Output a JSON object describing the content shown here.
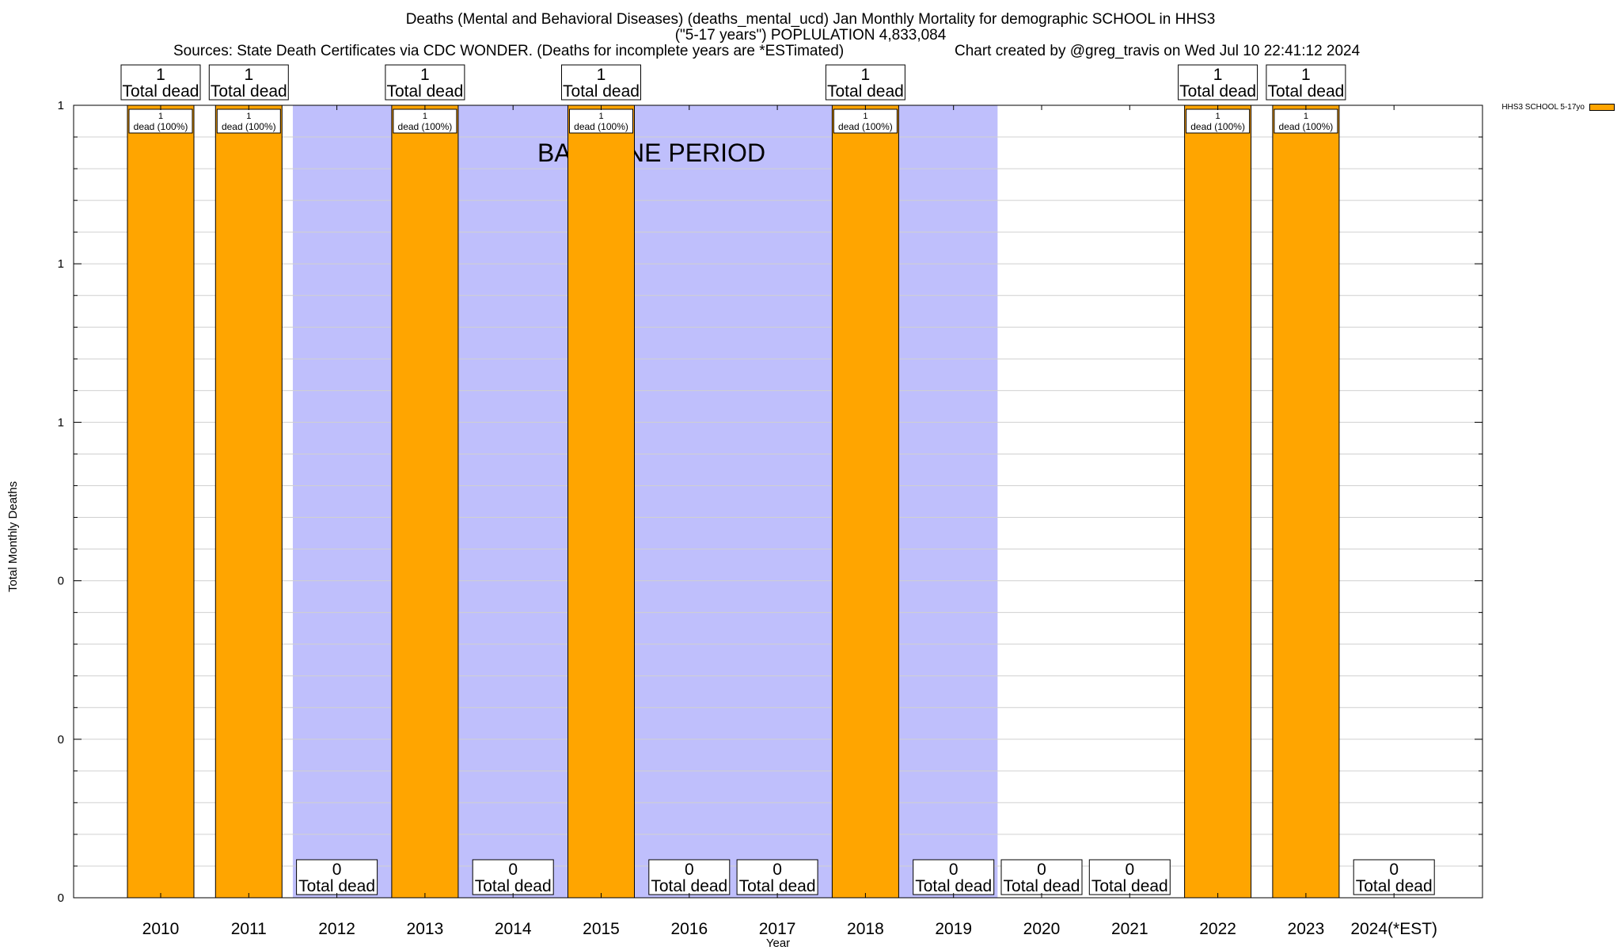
{
  "titles": {
    "line1": "Deaths (Mental and Behavioral Diseases) (deaths_mental_ucd) Jan Monthly Mortality for demographic SCHOOL in HHS3",
    "line2": "(\"5-17 years\") POPLULATION 4,833,084",
    "line3_left": "Sources: State Death Certificates via CDC WONDER. (Deaths for incomplete years are *ESTimated)",
    "line3_right": "Chart created by @greg_travis on Wed Jul 10 22:41:12 2024"
  },
  "colors": {
    "bar": "#ffa500",
    "baseline": "#bfbffc",
    "grid": "#d0d0d0"
  },
  "chart_data": {
    "type": "bar",
    "xlabel": "Year",
    "ylabel": "Total Monthly Deaths",
    "ylim": [
      0,
      1
    ],
    "y_tick_labels": [
      "0",
      "0",
      "0",
      "1",
      "1",
      "1"
    ],
    "grid": true,
    "legend": {
      "placement": "top-right",
      "entries": [
        "HHS3 SCHOOL 5-17yo"
      ]
    },
    "categories": [
      "2010",
      "2011",
      "2012",
      "2013",
      "2014",
      "2015",
      "2016",
      "2017",
      "2018",
      "2019",
      "2020",
      "2021",
      "2022",
      "2023",
      "2024(*EST)"
    ],
    "series": [
      {
        "name": "HHS3 SCHOOL 5-17yo",
        "values": [
          1,
          1,
          0,
          1,
          0,
          1,
          0,
          0,
          1,
          0,
          0,
          0,
          1,
          1,
          0
        ]
      }
    ],
    "total_labels": [
      "1",
      "1",
      "0",
      "1",
      "0",
      "1",
      "0",
      "0",
      "1",
      "0",
      "0",
      "0",
      "1",
      "1",
      "0"
    ],
    "total_caption": "Total dead",
    "bar_labels": [
      "1",
      "1",
      "",
      "1",
      "",
      "1",
      "",
      "",
      "1",
      "",
      "",
      "",
      "1",
      "1",
      ""
    ],
    "bar_label_caption": "dead (100%)",
    "baseline_period": {
      "label": "BASELINE PERIOD",
      "start": "2012",
      "end": "2019"
    }
  }
}
